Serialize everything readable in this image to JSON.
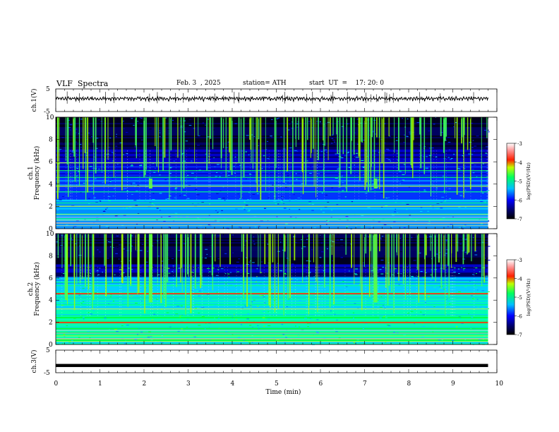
{
  "header": {
    "title": "VLF  Spectra",
    "date": "Feb. 3  , 2025",
    "station": "station= ATH",
    "start_ut": "start  UT  =    17: 20: 0"
  },
  "chart_data": [
    {
      "type": "line",
      "name": "ch1-waveform",
      "ylabel": "ch.1(V)",
      "ylim": [
        -5,
        5
      ],
      "yticks": [
        "5",
        "-5"
      ],
      "x_range": [
        0,
        9.8
      ],
      "baseline": 0.5,
      "samples": [
        0.6,
        0.2,
        0.9,
        0.4,
        -0.2,
        0.3,
        0.8,
        0.1,
        -0.4,
        0.5,
        0.7,
        0.0,
        -0.6,
        0.4,
        0.9,
        0.2,
        -0.3,
        0.6,
        0.8,
        -0.1,
        0.3,
        0.7,
        -0.5,
        0.2,
        0.9,
        0.4,
        -0.2,
        0.5,
        0.1,
        -0.8,
        0.6,
        0.3,
        0.9,
        -0.4,
        0.2,
        0.7,
        0.0,
        -0.3,
        0.5,
        0.8,
        0.1,
        -0.6,
        0.4,
        0.6,
        -0.2,
        0.3,
        0.9,
        0.2,
        -0.5,
        0.7
      ]
    },
    {
      "type": "heatmap",
      "name": "ch1-spectrogram",
      "ylabel": "ch.1\nFrequency (kHz)",
      "ylim": [
        0,
        10
      ],
      "yticks": [
        0,
        2,
        4,
        6,
        8,
        10
      ],
      "x_range": [
        0,
        9.8
      ],
      "colorbar": {
        "label": "log(PSD)(V²/Hz)",
        "range": [
          -7,
          -3
        ],
        "ticks": [
          "-3",
          "-4",
          "-5",
          "-6",
          "-7"
        ]
      },
      "bands_khz": [
        0.5,
        0.9,
        1.3,
        2.0,
        2.3,
        3.3,
        3.8,
        4.6,
        5.2,
        5.9
      ],
      "bursts_min": [
        2.15,
        7.25
      ]
    },
    {
      "type": "heatmap",
      "name": "ch2-spectrogram",
      "ylabel": "ch.2\nFrequency (kHz)",
      "ylim": [
        0,
        10
      ],
      "yticks": [
        0,
        2,
        4,
        6,
        8,
        10
      ],
      "x_range": [
        0,
        9.8
      ],
      "colorbar": {
        "label": "log(PSD)(V²/Hz)",
        "range": [
          -7,
          -3
        ],
        "ticks": [
          "-3",
          "-4",
          "-5",
          "-6",
          "-7"
        ]
      },
      "bands_khz": [
        0.5,
        1.0,
        1.5,
        2.0,
        2.1,
        2.6,
        3.2,
        3.6,
        4.2,
        4.6,
        5.3,
        5.6
      ],
      "bursts_min": [
        2.15,
        7.25
      ]
    },
    {
      "type": "line",
      "name": "ch3-waveform",
      "ylabel": "ch.3(V)",
      "ylim": [
        -5,
        5
      ],
      "yticks": [
        "5",
        "-5"
      ],
      "x_range": [
        0,
        9.8
      ],
      "baseline": -1.8,
      "xlabel": "Time  (min)",
      "xticks": [
        0,
        1,
        2,
        3,
        4,
        5,
        6,
        7,
        8,
        9,
        10
      ]
    }
  ]
}
